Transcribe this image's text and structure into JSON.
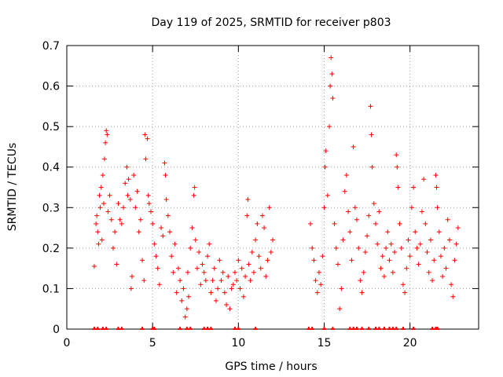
{
  "chart_data": {
    "type": "scatter",
    "title": "Day 119 of 2025, SRMTID for receiver p803",
    "xlabel": "GPS time / hours",
    "ylabel": "SRMTID / TECUs",
    "xlim": [
      0,
      24
    ],
    "ylim": [
      0,
      0.7
    ],
    "xticks": [
      0,
      5,
      10,
      15,
      20
    ],
    "xtick_labels": [
      "0",
      "5",
      "10",
      "15",
      "20"
    ],
    "yticks": [
      0,
      0.1,
      0.2,
      0.3,
      0.4,
      0.5,
      0.6,
      0.7
    ],
    "ytick_labels": [
      "0",
      "0.1",
      "0.2",
      "0.3",
      "0.4",
      "0.5",
      "0.6",
      "0.7"
    ],
    "grid": true,
    "marker": "+",
    "color": "#ff0000",
    "series": [
      {
        "name": "SRMTID",
        "points": [
          [
            1.6,
            0.155
          ],
          [
            1.7,
            0.26
          ],
          [
            1.75,
            0.28
          ],
          [
            1.8,
            0.24
          ],
          [
            1.85,
            0.21
          ],
          [
            1.9,
            0.33
          ],
          [
            1.95,
            0.3
          ],
          [
            2.0,
            0.35
          ],
          [
            2.05,
            0.22
          ],
          [
            2.1,
            0.38
          ],
          [
            2.15,
            0.31
          ],
          [
            2.2,
            0.42
          ],
          [
            2.25,
            0.46
          ],
          [
            2.3,
            0.49
          ],
          [
            2.35,
            0.48
          ],
          [
            2.4,
            0.29
          ],
          [
            2.5,
            0.33
          ],
          [
            2.6,
            0.27
          ],
          [
            2.7,
            0.2
          ],
          [
            2.8,
            0.24
          ],
          [
            2.9,
            0.16
          ],
          [
            3.0,
            0.31
          ],
          [
            3.1,
            0.27
          ],
          [
            3.2,
            0.26
          ],
          [
            3.3,
            0.3
          ],
          [
            3.4,
            0.36
          ],
          [
            3.5,
            0.4
          ],
          [
            3.55,
            0.33
          ],
          [
            3.6,
            0.37
          ],
          [
            3.7,
            0.32
          ],
          [
            3.75,
            0.1
          ],
          [
            3.8,
            0.13
          ],
          [
            3.9,
            0.38
          ],
          [
            4.0,
            0.3
          ],
          [
            4.1,
            0.34
          ],
          [
            4.2,
            0.24
          ],
          [
            4.3,
            0.27
          ],
          [
            4.4,
            0.17
          ],
          [
            4.5,
            0.12
          ],
          [
            4.55,
            0.48
          ],
          [
            4.6,
            0.42
          ],
          [
            4.7,
            0.47
          ],
          [
            4.75,
            0.33
          ],
          [
            4.8,
            0.31
          ],
          [
            4.9,
            0.29
          ],
          [
            5.0,
            0.26
          ],
          [
            5.1,
            0.21
          ],
          [
            5.2,
            0.18
          ],
          [
            5.3,
            0.15
          ],
          [
            5.4,
            0.11
          ],
          [
            5.5,
            0.25
          ],
          [
            5.6,
            0.23
          ],
          [
            5.7,
            0.41
          ],
          [
            5.75,
            0.38
          ],
          [
            5.8,
            0.32
          ],
          [
            5.9,
            0.28
          ],
          [
            6.0,
            0.24
          ],
          [
            6.1,
            0.18
          ],
          [
            6.2,
            0.14
          ],
          [
            6.3,
            0.21
          ],
          [
            6.4,
            0.09
          ],
          [
            6.5,
            0.15
          ],
          [
            6.6,
            0.12
          ],
          [
            6.7,
            0.07
          ],
          [
            6.8,
            0.1
          ],
          [
            6.9,
            0.03
          ],
          [
            7.0,
            0.05
          ],
          [
            7.05,
            0.14
          ],
          [
            7.1,
            0.08
          ],
          [
            7.2,
            0.2
          ],
          [
            7.3,
            0.25
          ],
          [
            7.4,
            0.33
          ],
          [
            7.45,
            0.35
          ],
          [
            7.5,
            0.22
          ],
          [
            7.6,
            0.15
          ],
          [
            7.7,
            0.19
          ],
          [
            7.8,
            0.11
          ],
          [
            7.9,
            0.16
          ],
          [
            8.0,
            0.14
          ],
          [
            8.1,
            0.12
          ],
          [
            8.2,
            0.18
          ],
          [
            8.3,
            0.21
          ],
          [
            8.4,
            0.09
          ],
          [
            8.5,
            0.12
          ],
          [
            8.6,
            0.15
          ],
          [
            8.7,
            0.07
          ],
          [
            8.8,
            0.1
          ],
          [
            8.9,
            0.17
          ],
          [
            9.0,
            0.12
          ],
          [
            9.1,
            0.14
          ],
          [
            9.2,
            0.09
          ],
          [
            9.3,
            0.06
          ],
          [
            9.4,
            0.13
          ],
          [
            9.5,
            0.05
          ],
          [
            9.6,
            0.1
          ],
          [
            9.7,
            0.11
          ],
          [
            9.8,
            0.14
          ],
          [
            9.9,
            0.12
          ],
          [
            10.0,
            0.17
          ],
          [
            10.1,
            0.1
          ],
          [
            10.2,
            0.15
          ],
          [
            10.3,
            0.08
          ],
          [
            10.4,
            0.13
          ],
          [
            10.5,
            0.28
          ],
          [
            10.55,
            0.32
          ],
          [
            10.6,
            0.16
          ],
          [
            10.7,
            0.12
          ],
          [
            10.8,
            0.19
          ],
          [
            10.9,
            0.14
          ],
          [
            11.0,
            0.22
          ],
          [
            11.1,
            0.26
          ],
          [
            11.2,
            0.18
          ],
          [
            11.3,
            0.15
          ],
          [
            11.4,
            0.28
          ],
          [
            11.5,
            0.25
          ],
          [
            11.6,
            0.13
          ],
          [
            11.7,
            0.17
          ],
          [
            11.8,
            0.3
          ],
          [
            11.9,
            0.19
          ],
          [
            12.0,
            0.22
          ],
          [
            14.2,
            0.26
          ],
          [
            14.3,
            0.2
          ],
          [
            14.4,
            0.17
          ],
          [
            14.5,
            0.12
          ],
          [
            14.6,
            0.09
          ],
          [
            14.7,
            0.14
          ],
          [
            14.8,
            0.11
          ],
          [
            14.9,
            0.18
          ],
          [
            15.0,
            0.3
          ],
          [
            15.05,
            0.4
          ],
          [
            15.1,
            0.44
          ],
          [
            15.2,
            0.33
          ],
          [
            15.3,
            0.5
          ],
          [
            15.35,
            0.6
          ],
          [
            15.4,
            0.67
          ],
          [
            15.45,
            0.63
          ],
          [
            15.5,
            0.57
          ],
          [
            15.6,
            0.26
          ],
          [
            15.7,
            0.2
          ],
          [
            15.8,
            0.16
          ],
          [
            15.9,
            0.05
          ],
          [
            16.0,
            0.1
          ],
          [
            16.1,
            0.22
          ],
          [
            16.2,
            0.34
          ],
          [
            16.3,
            0.38
          ],
          [
            16.4,
            0.29
          ],
          [
            16.5,
            0.24
          ],
          [
            16.6,
            0.17
          ],
          [
            16.7,
            0.45
          ],
          [
            16.8,
            0.3
          ],
          [
            16.9,
            0.27
          ],
          [
            17.0,
            0.2
          ],
          [
            17.1,
            0.12
          ],
          [
            17.2,
            0.09
          ],
          [
            17.3,
            0.14
          ],
          [
            17.4,
            0.19
          ],
          [
            17.5,
            0.23
          ],
          [
            17.6,
            0.28
          ],
          [
            17.7,
            0.55
          ],
          [
            17.75,
            0.48
          ],
          [
            17.8,
            0.4
          ],
          [
            17.9,
            0.31
          ],
          [
            18.0,
            0.26
          ],
          [
            18.1,
            0.21
          ],
          [
            18.2,
            0.29
          ],
          [
            18.3,
            0.15
          ],
          [
            18.4,
            0.18
          ],
          [
            18.5,
            0.13
          ],
          [
            18.6,
            0.2
          ],
          [
            18.7,
            0.24
          ],
          [
            18.8,
            0.17
          ],
          [
            18.9,
            0.21
          ],
          [
            19.0,
            0.14
          ],
          [
            19.1,
            0.19
          ],
          [
            19.2,
            0.43
          ],
          [
            19.25,
            0.4
          ],
          [
            19.3,
            0.35
          ],
          [
            19.4,
            0.26
          ],
          [
            19.5,
            0.2
          ],
          [
            19.6,
            0.11
          ],
          [
            19.7,
            0.09
          ],
          [
            19.8,
            0.15
          ],
          [
            19.9,
            0.22
          ],
          [
            20.0,
            0.18
          ],
          [
            20.1,
            0.3
          ],
          [
            20.2,
            0.35
          ],
          [
            20.3,
            0.24
          ],
          [
            20.4,
            0.2
          ],
          [
            20.5,
            0.16
          ],
          [
            20.6,
            0.21
          ],
          [
            20.7,
            0.29
          ],
          [
            20.8,
            0.37
          ],
          [
            20.9,
            0.26
          ],
          [
            21.0,
            0.19
          ],
          [
            21.1,
            0.14
          ],
          [
            21.2,
            0.22
          ],
          [
            21.3,
            0.12
          ],
          [
            21.4,
            0.17
          ],
          [
            21.5,
            0.38
          ],
          [
            21.55,
            0.35
          ],
          [
            21.6,
            0.3
          ],
          [
            21.7,
            0.24
          ],
          [
            21.8,
            0.18
          ],
          [
            21.9,
            0.13
          ],
          [
            22.0,
            0.2
          ],
          [
            22.1,
            0.15
          ],
          [
            22.2,
            0.27
          ],
          [
            22.3,
            0.22
          ],
          [
            22.4,
            0.11
          ],
          [
            22.5,
            0.08
          ],
          [
            22.6,
            0.17
          ],
          [
            22.7,
            0.21
          ],
          [
            22.8,
            0.25
          ]
        ]
      }
    ],
    "zero_markers_x": [
      1.6,
      1.8,
      2.1,
      2.3,
      3.0,
      3.2,
      4.4,
      5.0,
      5.1,
      6.6,
      7.0,
      7.2,
      8.0,
      8.2,
      8.4,
      9.8,
      10.0,
      11.0,
      14.1,
      14.3,
      15.0,
      15.5,
      16.5,
      16.7,
      16.9,
      17.2,
      17.6,
      18.0,
      18.2,
      18.5,
      18.8,
      19.0,
      19.2,
      19.6,
      20.2,
      21.3,
      21.5,
      21.6
    ]
  }
}
